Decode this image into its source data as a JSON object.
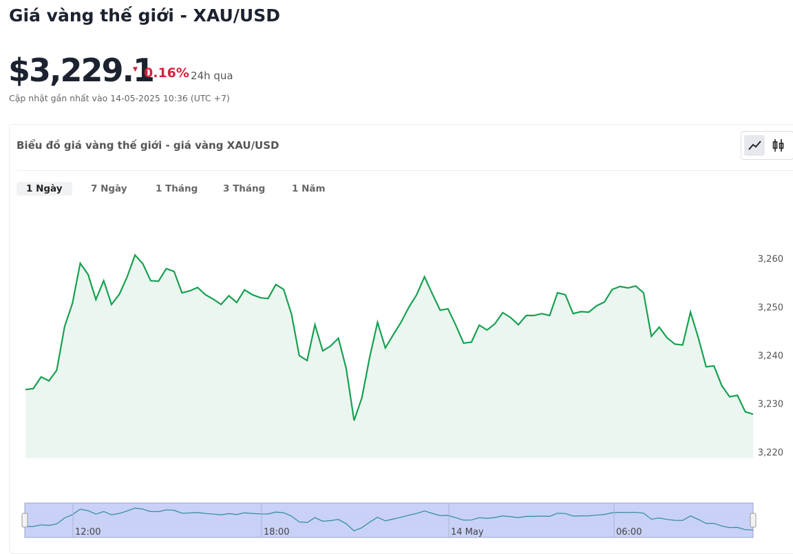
{
  "header": {
    "title": "Giá vàng thế giới - XAU/USD",
    "price": "$3,229.1",
    "change": "0.16%",
    "change_period": "24h qua",
    "updated": "Cập nhật gần nhất vào 14-05-2025 10:36 (UTC +7)"
  },
  "card": {
    "title": "Biểu đồ giá vàng thế giới - giá vàng XAU/USD",
    "tabs": [
      "1 Ngày",
      "7 Ngày",
      "1 Tháng",
      "3 Tháng",
      "1 Năm"
    ]
  },
  "chart_data": {
    "type": "line",
    "color": "#15a050",
    "values": [
      3232.9,
      3233.1,
      3235.5,
      3234.7,
      3236.9,
      3245.9,
      3250.7,
      3259.0,
      3256.7,
      3251.5,
      3255.4,
      3250.5,
      3252.6,
      3256.2,
      3260.7,
      3258.9,
      3255.4,
      3255.3,
      3257.9,
      3257.3,
      3252.9,
      3253.3,
      3254.0,
      3252.5,
      3251.6,
      3250.5,
      3252.3,
      3250.9,
      3253.5,
      3252.5,
      3251.9,
      3251.7,
      3254.6,
      3253.6,
      3248.5,
      3239.9,
      3238.9,
      3246.3,
      3240.9,
      3241.9,
      3243.5,
      3237.2,
      3226.5,
      3231.2,
      3239.6,
      3246.8,
      3241.5,
      3244.2,
      3246.8,
      3249.9,
      3252.5,
      3256.2,
      3252.7,
      3249.3,
      3249.6,
      3246.2,
      3242.5,
      3242.7,
      3246.2,
      3245.2,
      3246.5,
      3248.8,
      3247.8,
      3246.3,
      3248.2,
      3248.2,
      3248.6,
      3248.2,
      3252.9,
      3252.5,
      3248.6,
      3249.0,
      3248.9,
      3250.2,
      3251.0,
      3253.6,
      3254.2,
      3253.9,
      3254.3,
      3252.9,
      3243.9,
      3245.8,
      3243.6,
      3242.3,
      3242.1,
      3248.9,
      3243.6,
      3237.6,
      3237.8,
      3233.7,
      3231.4,
      3231.7,
      3228.3,
      3227.8
    ],
    "ylim": [
      3218.7,
      3263
    ],
    "yticks": [
      {
        "value": 3220,
        "label": "3,220"
      },
      {
        "value": 3230,
        "label": "3,230"
      },
      {
        "value": 3240,
        "label": "3,240"
      },
      {
        "value": 3250,
        "label": "3,250"
      },
      {
        "value": 3260,
        "label": "3,260"
      }
    ],
    "navigator_labels": [
      "12:00",
      "18:00",
      "14 May",
      "06:00"
    ]
  }
}
